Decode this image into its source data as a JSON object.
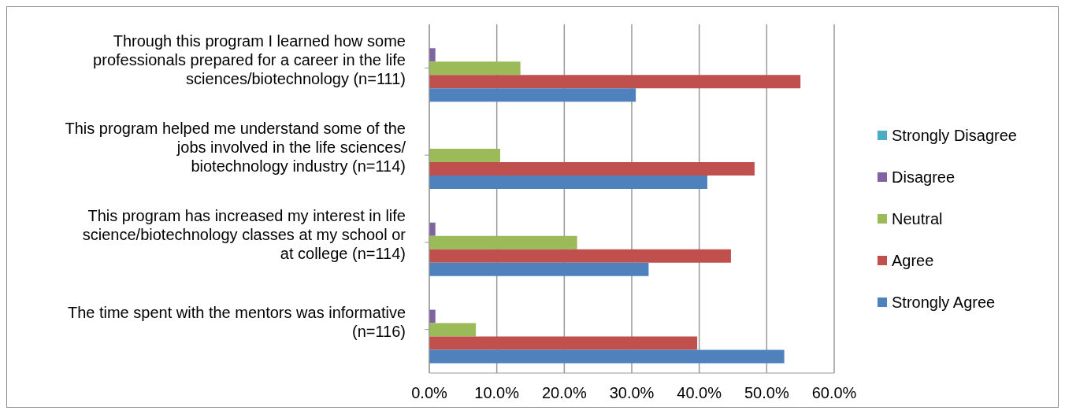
{
  "chart_data": {
    "type": "bar",
    "orientation": "horizontal",
    "categories": [
      "Through this program I learned how some professionals prepared for a career in the life sciences/biotechnology (n=111)",
      "This program helped me understand some of the jobs involved in the life sciences/ biotechnology industry (n=114)",
      "This program has increased my interest in life science/biotechnology classes at my school or at college (n=114)",
      "The time spent with the mentors was informative (n=116)"
    ],
    "series": [
      {
        "name": "Strongly Disagree",
        "color": "#4bacc6",
        "values": [
          0,
          0,
          0,
          0
        ]
      },
      {
        "name": "Disagree",
        "color": "#8064a2",
        "values": [
          0.9,
          0,
          0.9,
          0.9
        ]
      },
      {
        "name": "Neutral",
        "color": "#9bbb59",
        "values": [
          13.5,
          10.5,
          21.9,
          6.9
        ]
      },
      {
        "name": "Agree",
        "color": "#c0504d",
        "values": [
          55.0,
          48.2,
          44.7,
          39.7
        ]
      },
      {
        "name": "Strongly Agree",
        "color": "#4f81bd",
        "values": [
          30.6,
          41.2,
          32.5,
          52.6
        ]
      }
    ],
    "xlim": [
      0,
      60
    ],
    "xticks": [
      {
        "value": 0,
        "label": "0.0%"
      },
      {
        "value": 10,
        "label": "10.0%"
      },
      {
        "value": 20,
        "label": "20.0%"
      },
      {
        "value": 30,
        "label": "30.0%"
      },
      {
        "value": 40,
        "label": "40.0%"
      },
      {
        "value": 50,
        "label": "50.0%"
      },
      {
        "value": 60,
        "label": "60.0%"
      }
    ],
    "grid": "x",
    "legend": "right"
  }
}
